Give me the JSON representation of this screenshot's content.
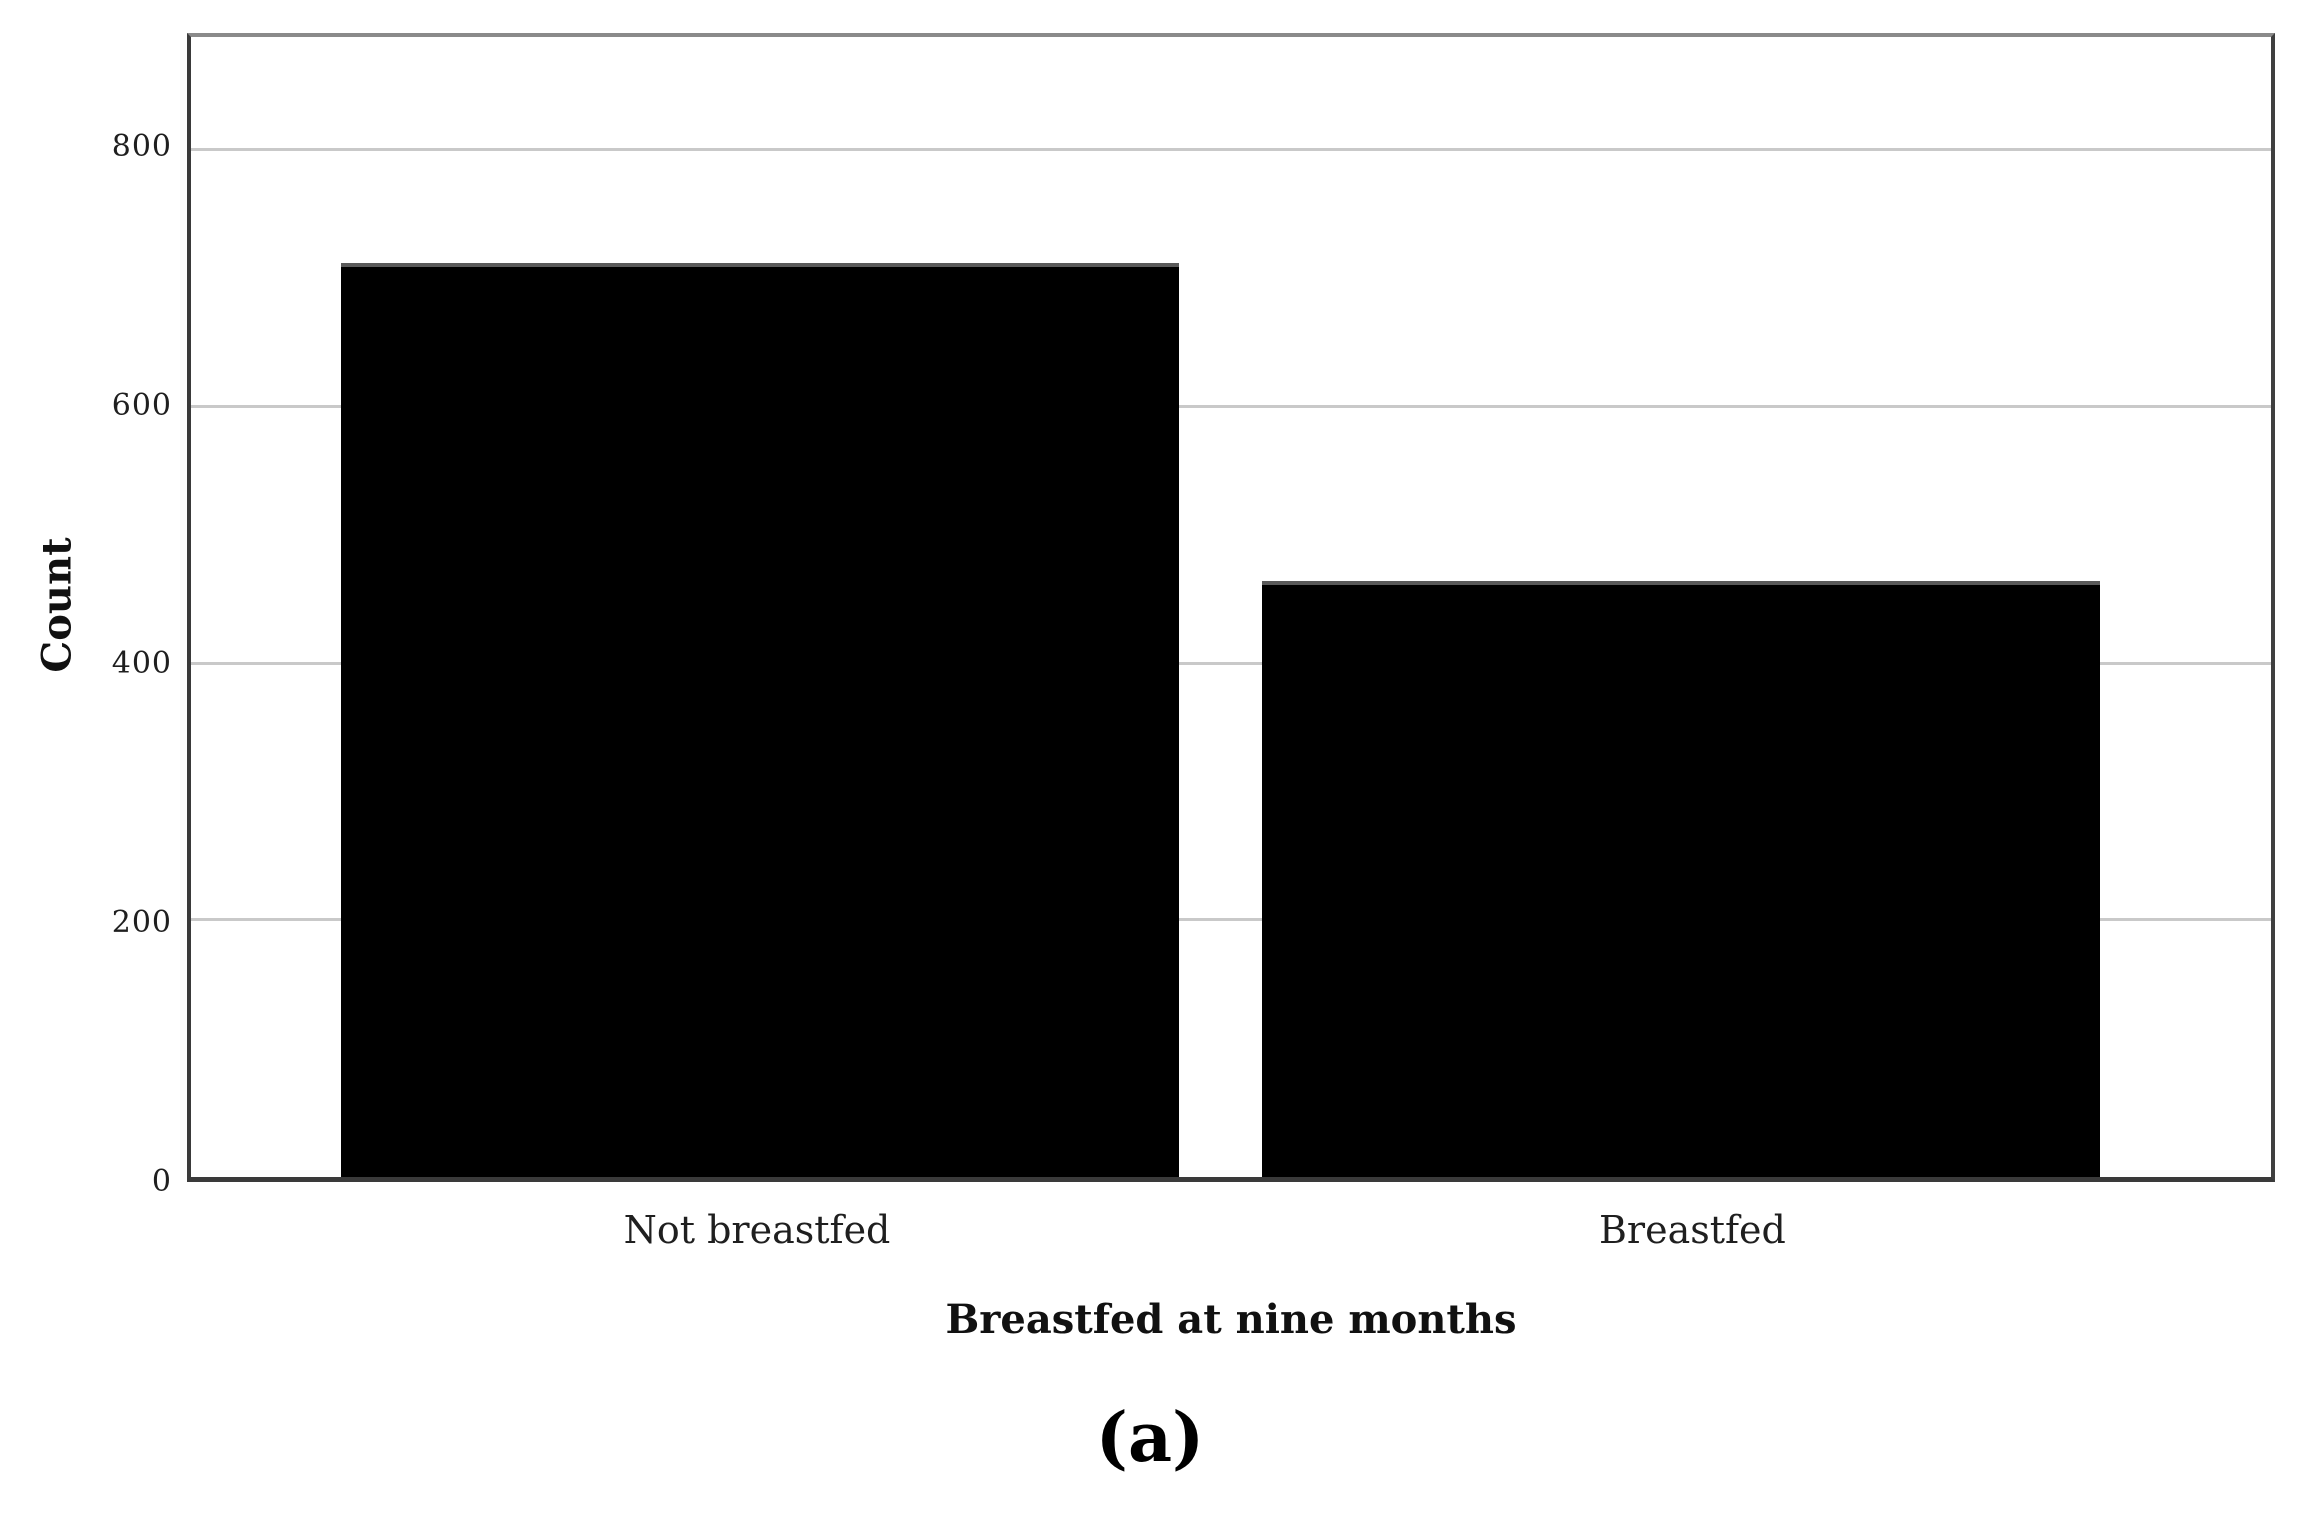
{
  "figure": {
    "caption": "(a)"
  },
  "chart_data": {
    "type": "bar",
    "title": "",
    "categories": [
      "Not breastfed",
      "Breastfed"
    ],
    "values": [
      712,
      464
    ],
    "xlabel": "Breastfed at nine months",
    "ylabel": "Count",
    "yticks": [
      0,
      200,
      400,
      600,
      800
    ],
    "ylim": [
      0,
      888
    ],
    "grid": "horizontal-gridlines-at-yticks",
    "legend": "none",
    "bar_color": "#000000",
    "bar_border_color": "#5a5a5a",
    "gridline_color": "#c9c9c9",
    "axis_color": "#3a3a3a",
    "plot_top_border_color": "#8a8a8a",
    "background_color": "#ffffff"
  }
}
